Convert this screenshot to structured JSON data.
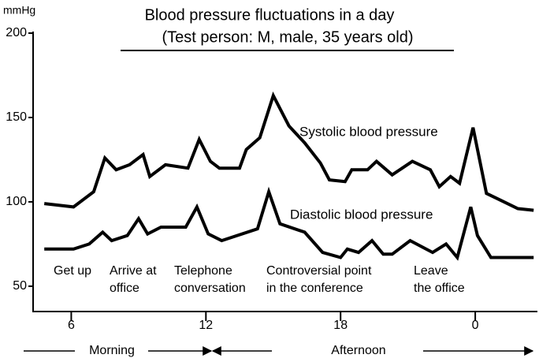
{
  "chart_data": {
    "type": "line",
    "title": "Blood pressure fluctuations in a day",
    "subtitle": "(Test person: M, male, 35 years old)",
    "y_label": "mmHg",
    "series": [
      {
        "name": "Systolic blood pressure",
        "color": "#000000",
        "x": [
          4.8,
          6.1,
          7.0,
          7.5,
          8.0,
          8.6,
          9.2,
          9.5,
          10.2,
          11.2,
          11.7,
          12.2,
          12.6,
          13.5,
          13.8,
          14.4,
          15.0,
          15.7,
          16.4,
          17.1,
          17.5,
          18.2,
          18.5,
          19.2,
          19.6,
          20.3,
          21.2,
          22.0,
          22.4,
          22.9,
          23.3,
          23.9,
          24.5,
          25.9,
          26.6
        ],
        "values": [
          99,
          97,
          106,
          126,
          119,
          122,
          128,
          115,
          122,
          120,
          137,
          124,
          120,
          120,
          131,
          138,
          163,
          145,
          135,
          123,
          113,
          112,
          119,
          119,
          124,
          116,
          124,
          119,
          109,
          115,
          111,
          144,
          105,
          96,
          95
        ]
      },
      {
        "name": "Diastolic blood pressure",
        "color": "#000000",
        "x": [
          4.8,
          6.1,
          6.8,
          7.4,
          7.8,
          8.5,
          9.0,
          9.4,
          10.0,
          11.1,
          11.6,
          12.1,
          12.7,
          14.3,
          14.8,
          15.3,
          16.4,
          17.2,
          18.0,
          18.3,
          18.8,
          19.4,
          19.9,
          20.3,
          21.1,
          22.1,
          22.7,
          23.2,
          23.8,
          24.1,
          24.7,
          26.6
        ],
        "values": [
          72,
          72,
          75,
          82,
          77,
          80,
          90,
          81,
          85,
          85,
          97,
          81,
          77,
          84,
          106,
          87,
          82,
          70,
          67,
          72,
          70,
          77,
          69,
          69,
          77,
          70,
          75,
          67,
          97,
          80,
          67,
          67
        ]
      }
    ],
    "xlim": [
      4.3,
      26.7
    ],
    "ylim": [
      35,
      200
    ],
    "xticks": [
      6,
      12,
      18,
      {
        "value": 24,
        "label": "0"
      }
    ],
    "yticks": [
      50,
      100,
      150,
      200
    ],
    "annotations": [
      [
        "Get up"
      ],
      [
        "Arrive at",
        "office"
      ],
      [
        "Telephone",
        "conversation"
      ],
      [
        "Controversial point",
        "in the conference"
      ],
      [
        "Leave",
        "the office"
      ]
    ],
    "periods": [
      "Morning",
      "Afternoon"
    ]
  }
}
